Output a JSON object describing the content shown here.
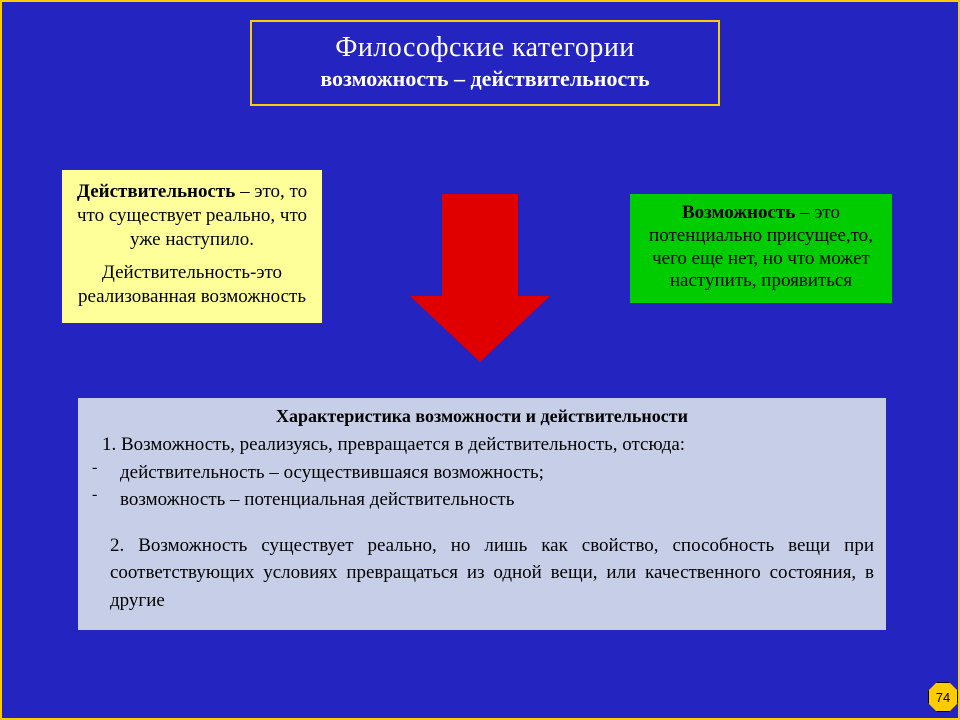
{
  "colors": {
    "slide_bg": "#2424c0",
    "accent_border": "#ffcc00",
    "box_left_bg": "#ffff99",
    "box_right_bg": "#00cc00",
    "arrow_fill": "#e00000",
    "char_box_bg": "#c7cfe8",
    "title_text": "#ffffff",
    "body_text": "#000000"
  },
  "title": {
    "main": "Философские  категории",
    "sub": "возможность – действительность",
    "main_fontsize": 28,
    "sub_fontsize": 22
  },
  "left_box": {
    "term": "Действительность",
    "p1_rest": " – это, то что существует реально, что уже наступило.",
    "p2": "Действительность-это реализованная возможность",
    "fontsize": 19
  },
  "right_box": {
    "term": "Возможность",
    "rest": " – это потенциально присущее,то, чего еще нет, но что может наступить, проявиться",
    "fontsize": 19
  },
  "arrow": {
    "direction": "down",
    "shaft_w": 76,
    "shaft_h": 104,
    "head_w": 140,
    "head_h": 66
  },
  "characteristics": {
    "title": "Характеристика возможности и действительности",
    "item1_lead": "1. Возможность, реализуясь, превращается в действительность, отсюда:",
    "item1_sub1": "действительность – осуществившаяся возможность;",
    "item1_sub2": "возможность – потенциальная действительность",
    "item2": "2.  Возможность существует реально, но лишь как свойство, способность вещи при соответствующих условиях  превращаться из одной вещи, или качественного состояния, в другие",
    "dash": "-",
    "title_fontsize": 18,
    "body_fontsize": 19
  },
  "page_number": "74"
}
